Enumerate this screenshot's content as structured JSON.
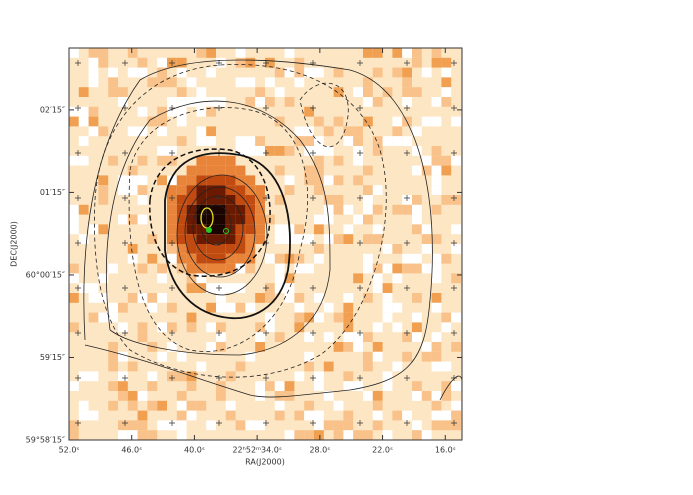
{
  "chart_data": {
    "type": "image",
    "xlabel": "RA(J2000)",
    "ylabel": "DEC(J2000)",
    "xlim": [
      52.0,
      14.4
    ],
    "xticks": [
      {
        "value": 52.0,
        "label": "52.0ˢ"
      },
      {
        "value": 46.0,
        "label": "46.0ˢ"
      },
      {
        "value": 40.0,
        "label": "40.0ˢ"
      },
      {
        "value": 34.0,
        "label": "22ʰ52ᵐ34.0ˢ"
      },
      {
        "value": 28.0,
        "label": "28.0ˢ"
      },
      {
        "value": 22.0,
        "label": "22.0ˢ"
      },
      {
        "value": 16.0,
        "label": "16.0ˢ"
      }
    ],
    "ylim": [
      -105,
      180
    ],
    "yticks": [
      {
        "value": -105,
        "label": "59°58′15″"
      },
      {
        "value": -45,
        "label": "59′15″"
      },
      {
        "value": 15,
        "label": "60°00′15″"
      },
      {
        "value": 75,
        "label": "01′15″"
      },
      {
        "value": 135,
        "label": "02′15″"
      }
    ]
  }
}
